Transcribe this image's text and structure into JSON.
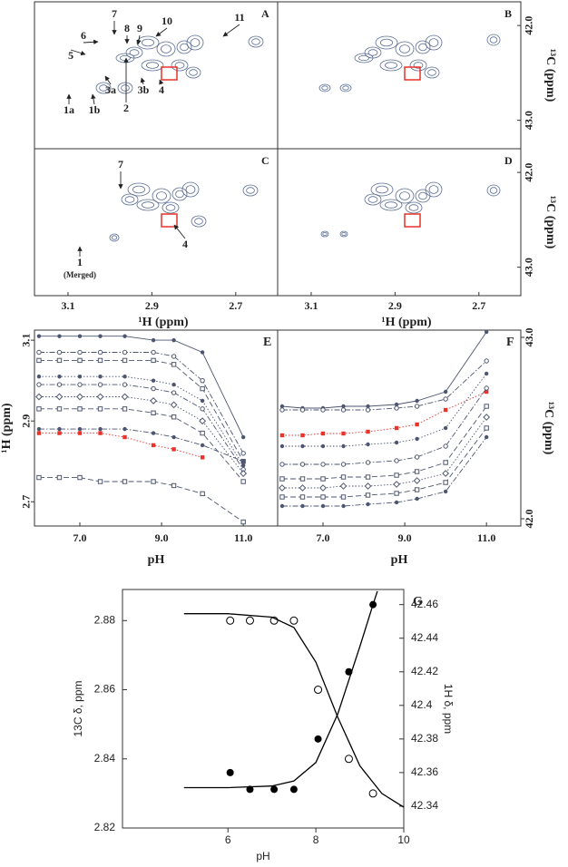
{
  "spectra": {
    "x_title": "¹H (ppm)",
    "y_title": "¹³C (ppm)",
    "x_inverted": true,
    "y_inverted": true,
    "xlim": [
      2.6,
      3.18
    ],
    "xticks": [
      3.1,
      2.9,
      2.7
    ],
    "ylim": [
      41.75,
      43.3
    ],
    "yticks": [
      {
        "value": 42,
        "label": "42.0"
      },
      {
        "value": 43,
        "label": "43.0"
      }
    ],
    "contour_color": "#5b6d96",
    "box_color": "#e8322a",
    "panels": [
      {
        "label": "A",
        "peaks": [
          "6",
          "7",
          "8",
          "9",
          "10",
          "11",
          "5",
          "3a",
          "3b",
          "4",
          "2",
          "1a",
          "1b"
        ]
      },
      {
        "label": "B",
        "peaks": []
      },
      {
        "label": "C",
        "peaks": [
          "7",
          "4",
          "1",
          "(Merged)"
        ]
      },
      {
        "label": "D",
        "peaks": []
      }
    ]
  },
  "chart_data": [
    {
      "type": "line",
      "label": "E",
      "x_label": "pH",
      "y_label": "¹H (ppm)",
      "y_axis_side": "left",
      "x": [
        6,
        6.5,
        7,
        7.5,
        8.1,
        8.8,
        9.3,
        10,
        11
      ],
      "xlim": [
        5.89,
        11.84
      ],
      "xticks": [
        {
          "value": 7,
          "label": "7.0"
        },
        {
          "value": 9,
          "label": "9.0"
        },
        {
          "value": 11,
          "label": "11.0"
        }
      ],
      "ylim": [
        2.64,
        3.125
      ],
      "yticks": [
        2.7,
        2.9,
        3.1
      ],
      "series": [
        {
          "color": "#4d5670",
          "marker": "circle",
          "dash": "solid",
          "values": [
            3.11,
            3.11,
            3.11,
            3.11,
            3.11,
            3.1,
            3.1,
            3.07,
            2.86
          ]
        },
        {
          "color": "#4d5670",
          "marker": "open-circle",
          "dash": "dashdot",
          "values": [
            3.07,
            3.07,
            3.07,
            3.07,
            3.07,
            3.07,
            3.06,
            3.0,
            2.82
          ]
        },
        {
          "color": "#4d5670",
          "marker": "open-square",
          "dash": "dashed",
          "values": [
            3.05,
            3.05,
            3.05,
            3.05,
            3.05,
            3.05,
            3.04,
            2.98,
            2.8
          ]
        },
        {
          "color": "#4d5670",
          "marker": "circle",
          "dash": "dotted",
          "values": [
            3.01,
            3.01,
            3.01,
            3.01,
            3.01,
            3.0,
            2.99,
            2.95,
            2.79
          ]
        },
        {
          "color": "#4d5670",
          "marker": "open-circle",
          "dash": "dashdot",
          "values": [
            2.99,
            2.99,
            2.99,
            2.99,
            2.99,
            2.98,
            2.97,
            2.93,
            2.78
          ]
        },
        {
          "color": "#4d5670",
          "marker": "diamond",
          "dash": "dotted",
          "values": [
            2.96,
            2.96,
            2.96,
            2.96,
            2.96,
            2.95,
            2.94,
            2.9,
            2.77
          ]
        },
        {
          "color": "#4d5670",
          "marker": "open-square",
          "dash": "dashed",
          "values": [
            2.93,
            2.93,
            2.93,
            2.93,
            2.93,
            2.92,
            2.91,
            2.87,
            2.75
          ]
        },
        {
          "color": "#4d5670",
          "marker": "circle",
          "dash": "dashdot",
          "values": [
            2.88,
            2.88,
            2.88,
            2.88,
            2.88,
            2.87,
            2.86,
            2.84,
            2.8
          ]
        },
        {
          "color": "#e8322a",
          "marker": "square",
          "dash": "dotted",
          "values": [
            2.87,
            2.87,
            2.87,
            2.87,
            2.86,
            2.84,
            2.83,
            2.81,
            null
          ]
        },
        {
          "color": "#4d5670",
          "marker": "open-square",
          "dash": "dashed",
          "values": [
            2.76,
            2.76,
            2.76,
            2.75,
            2.75,
            2.75,
            2.74,
            2.72,
            2.65
          ]
        }
      ]
    },
    {
      "type": "line",
      "label": "F",
      "x_label": "pH",
      "y_label": "¹³C (ppm)",
      "y_axis_side": "right",
      "x": [
        6,
        6.5,
        7,
        7.5,
        8.1,
        8.8,
        9.3,
        10,
        11
      ],
      "xlim": [
        5.89,
        11.84
      ],
      "xticks": [
        {
          "value": 7,
          "label": "7.0"
        },
        {
          "value": 9,
          "label": "9.0"
        },
        {
          "value": 11,
          "label": "11.0"
        }
      ],
      "ylim": [
        41.96,
        43.04
      ],
      "yticks": [
        {
          "value": 42,
          "label": "42.0"
        },
        {
          "value": 43,
          "label": "43.0"
        }
      ],
      "series": [
        {
          "color": "#4d5670",
          "marker": "circle",
          "dash": "solid",
          "values": [
            42.62,
            42.61,
            42.61,
            42.62,
            42.62,
            42.63,
            42.65,
            42.7,
            43.03
          ]
        },
        {
          "color": "#4d5670",
          "marker": "open-circle",
          "dash": "dashdot",
          "values": [
            42.6,
            42.6,
            42.6,
            42.6,
            42.6,
            42.61,
            42.62,
            42.66,
            42.87
          ]
        },
        {
          "color": "#e8322a",
          "marker": "square",
          "dash": "dotted",
          "values": [
            42.46,
            42.46,
            42.47,
            42.47,
            42.48,
            42.5,
            42.52,
            42.6,
            42.7
          ]
        },
        {
          "color": "#4d5670",
          "marker": "circle",
          "dash": "dotted",
          "values": [
            42.4,
            42.4,
            42.4,
            42.4,
            42.41,
            42.42,
            42.44,
            42.5,
            42.8
          ]
        },
        {
          "color": "#4d5670",
          "marker": "open-circle",
          "dash": "dashdot",
          "values": [
            42.3,
            42.3,
            42.3,
            42.3,
            42.31,
            42.32,
            42.34,
            42.4,
            42.72
          ]
        },
        {
          "color": "#4d5670",
          "marker": "open-square",
          "dash": "dashed",
          "values": [
            42.22,
            42.22,
            42.22,
            42.23,
            42.23,
            42.24,
            42.26,
            42.31,
            42.62
          ]
        },
        {
          "color": "#4d5670",
          "marker": "diamond",
          "dash": "dotted",
          "values": [
            42.17,
            42.17,
            42.17,
            42.18,
            42.18,
            42.19,
            42.21,
            42.25,
            42.56
          ]
        },
        {
          "color": "#4d5670",
          "marker": "open-square",
          "dash": "dashed",
          "values": [
            42.12,
            42.12,
            42.12,
            42.12,
            42.13,
            42.14,
            42.16,
            42.2,
            42.5
          ]
        },
        {
          "color": "#4d5670",
          "marker": "circle",
          "dash": "dashdot",
          "values": [
            42.07,
            42.07,
            42.07,
            42.07,
            42.08,
            42.09,
            42.11,
            42.15,
            42.45
          ]
        }
      ]
    },
    {
      "type": "line",
      "label": "G",
      "x_label": "pH",
      "y_label": "13C δ, ppm",
      "y2_label": "1H δ, ppm",
      "y_axis_side": "left",
      "xlim": [
        3.6,
        10
      ],
      "xticks": [
        6,
        8,
        10
      ],
      "ylim": [
        2.82,
        2.889
      ],
      "yticks": [
        2.82,
        2.84,
        2.86,
        2.88
      ],
      "y2lim": [
        42.327,
        42.469
      ],
      "y2ticks": [
        42.34,
        42.36,
        42.38,
        42.4,
        42.42,
        42.44,
        42.46
      ],
      "series": [
        {
          "color": "#000000",
          "marker": "open-circle",
          "dash": "none",
          "x": [
            6.05,
            6.5,
            7.05,
            7.5,
            8.05,
            8.75,
            9.3
          ],
          "values": [
            2.88,
            2.88,
            2.88,
            2.88,
            2.86,
            2.84,
            2.83
          ]
        },
        {
          "color": "#000000",
          "marker": "circle",
          "dash": "none",
          "axis": "y2",
          "x": [
            6.05,
            6.5,
            7.05,
            7.5,
            8.05,
            8.75,
            9.3
          ],
          "values": [
            42.36,
            42.35,
            42.35,
            42.35,
            42.38,
            42.42,
            42.46
          ]
        },
        {
          "color": "#000000",
          "marker": "none",
          "dash": "solid",
          "x": [
            5,
            6,
            7,
            7.5,
            8,
            8.5,
            9,
            9.5,
            10
          ],
          "values": [
            2.882,
            2.882,
            2.881,
            2.878,
            2.868,
            2.852,
            2.838,
            2.83,
            2.826
          ]
        },
        {
          "color": "#000000",
          "marker": "none",
          "dash": "solid",
          "axis": "y2",
          "x": [
            5,
            6,
            7,
            7.5,
            8,
            8.5,
            9,
            9.3,
            9.4
          ],
          "values": [
            42.351,
            42.351,
            42.352,
            42.355,
            42.366,
            42.395,
            42.435,
            42.46,
            42.468
          ]
        }
      ]
    }
  ]
}
